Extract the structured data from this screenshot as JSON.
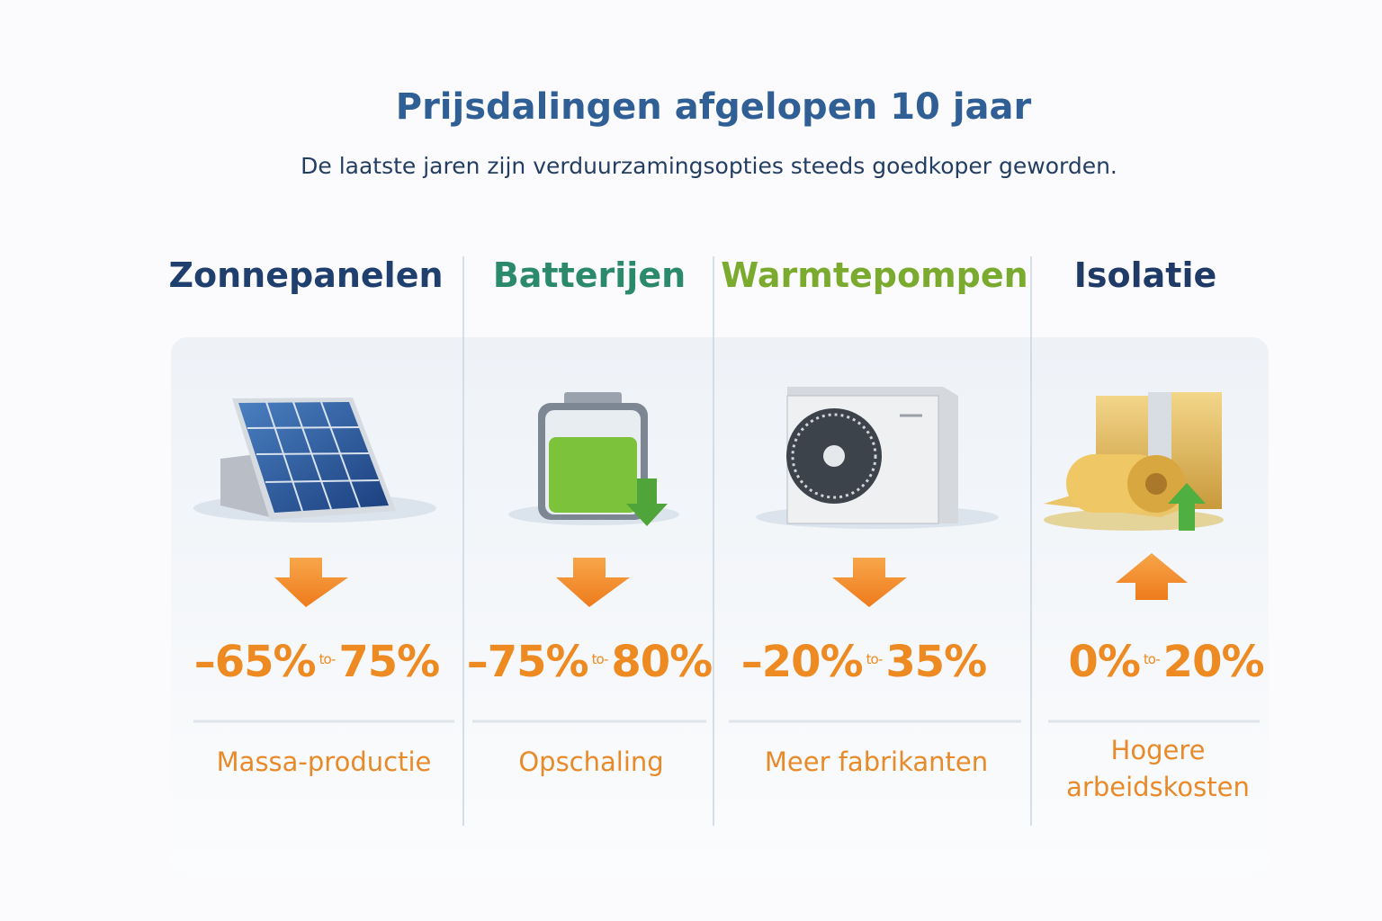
{
  "header": {
    "title": "Prijsdalingen afgelopen 10 jaar",
    "subtitle": "De laatste jaren zijn verduurzamingsopties steeds goedkoper geworden."
  },
  "columns": [
    {
      "name": "Zonnepanelen",
      "from": "–65%",
      "separator": "to-",
      "to": "75%",
      "reason": "Massa-productie"
    },
    {
      "name": "Batterijen",
      "from": "–75%",
      "separator": "to-",
      "to": "80%",
      "reason": "Opschaling"
    },
    {
      "name": "Warmtepompen",
      "from": "–20%",
      "separator": "to-",
      "to": "35%",
      "reason": "Meer fabrikanten"
    },
    {
      "name": "Isolatie",
      "from": "0%",
      "separator": "to-",
      "to": "20%",
      "reason": "Hogere arbeidskosten"
    }
  ]
}
